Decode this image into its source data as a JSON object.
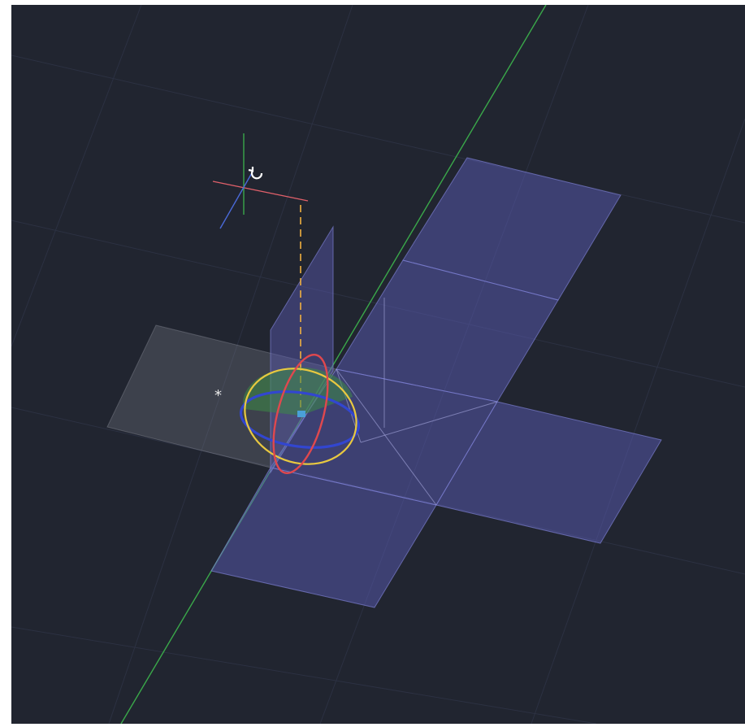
{
  "viewport": {
    "background": "#212530",
    "snap_marker": "*"
  },
  "colors": {
    "face_fill": "#5a5cb4",
    "selected_face_fill": "#8a8d97",
    "grid_line": "#2b3040",
    "y_axis": "#3aa84a",
    "x_axis": "#e0606a",
    "z_axis": "#4a6ad8",
    "gizmo_yellow": "#e8c840",
    "gizmo_red": "#e0484e",
    "gizmo_blue": "#3246d0",
    "tracking_line": "#f0b040"
  },
  "icons": [
    "ucs-icon",
    "rotate-cursor-icon",
    "rotate-gizmo-icon"
  ]
}
